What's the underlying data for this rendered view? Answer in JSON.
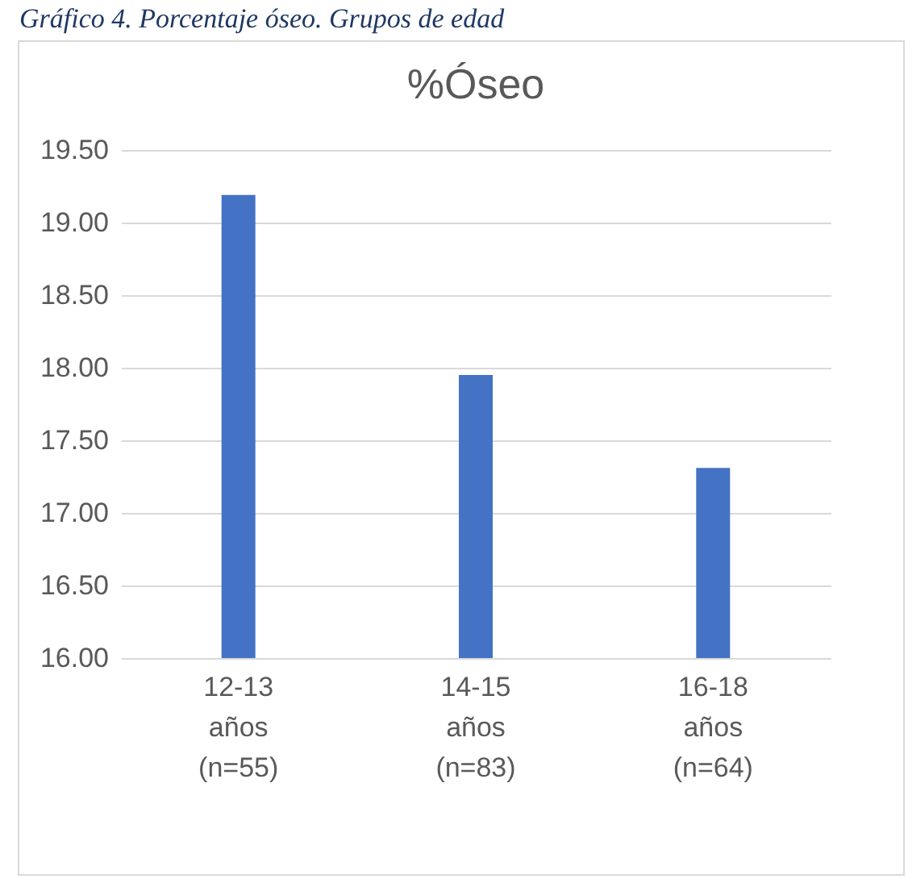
{
  "chart_data": {
    "type": "bar",
    "title": "%Óseo",
    "annotations": [
      "Gráfico 4. Porcentaje óseo. Grupos de edad"
    ],
    "categories": [
      "12-13 años (n=55)",
      "14-15 años (n=83)",
      "16-18 años (n=64)"
    ],
    "values": [
      19.19,
      17.95,
      17.31
    ],
    "color": "#4472c4",
    "ylim": [
      16,
      19.5
    ],
    "yticks": [
      {
        "value": 16,
        "label": "16.00"
      },
      {
        "value": 16.5,
        "label": "16.50"
      },
      {
        "value": 17,
        "label": "17.00"
      },
      {
        "value": 17.5,
        "label": "17.50"
      },
      {
        "value": 18,
        "label": "18.00"
      },
      {
        "value": 18.5,
        "label": "18.50"
      },
      {
        "value": 19,
        "label": "19.00"
      },
      {
        "value": 19.5,
        "label": "19.50"
      }
    ],
    "grid": "y"
  }
}
